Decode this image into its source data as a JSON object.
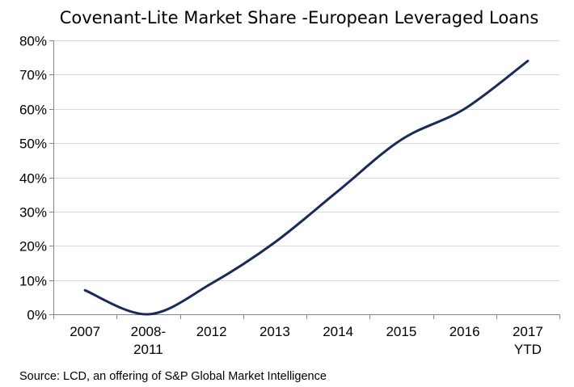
{
  "chart_data": {
    "type": "line",
    "title": "Covenant-Lite Market Share -European Leveraged Loans",
    "categories": [
      [
        "2007"
      ],
      [
        "2008-",
        "2011"
      ],
      [
        "2012"
      ],
      [
        "2013"
      ],
      [
        "2014"
      ],
      [
        "2015"
      ],
      [
        "2016"
      ],
      [
        "2017",
        "YTD"
      ]
    ],
    "series": [
      {
        "values": [
          7,
          0,
          9,
          21,
          36,
          51,
          60,
          74
        ],
        "color": "#1a2a5a"
      }
    ],
    "ylim": [
      0,
      80
    ],
    "yticks": [
      0,
      10,
      20,
      30,
      40,
      50,
      60,
      70,
      80
    ],
    "ytick_labels": [
      "0%",
      "10%",
      "20%",
      "30%",
      "40%",
      "50%",
      "60%",
      "70%",
      "80%"
    ],
    "grid": true,
    "source": "Source: LCD, an offering of S&P Global Market Intelligence"
  }
}
